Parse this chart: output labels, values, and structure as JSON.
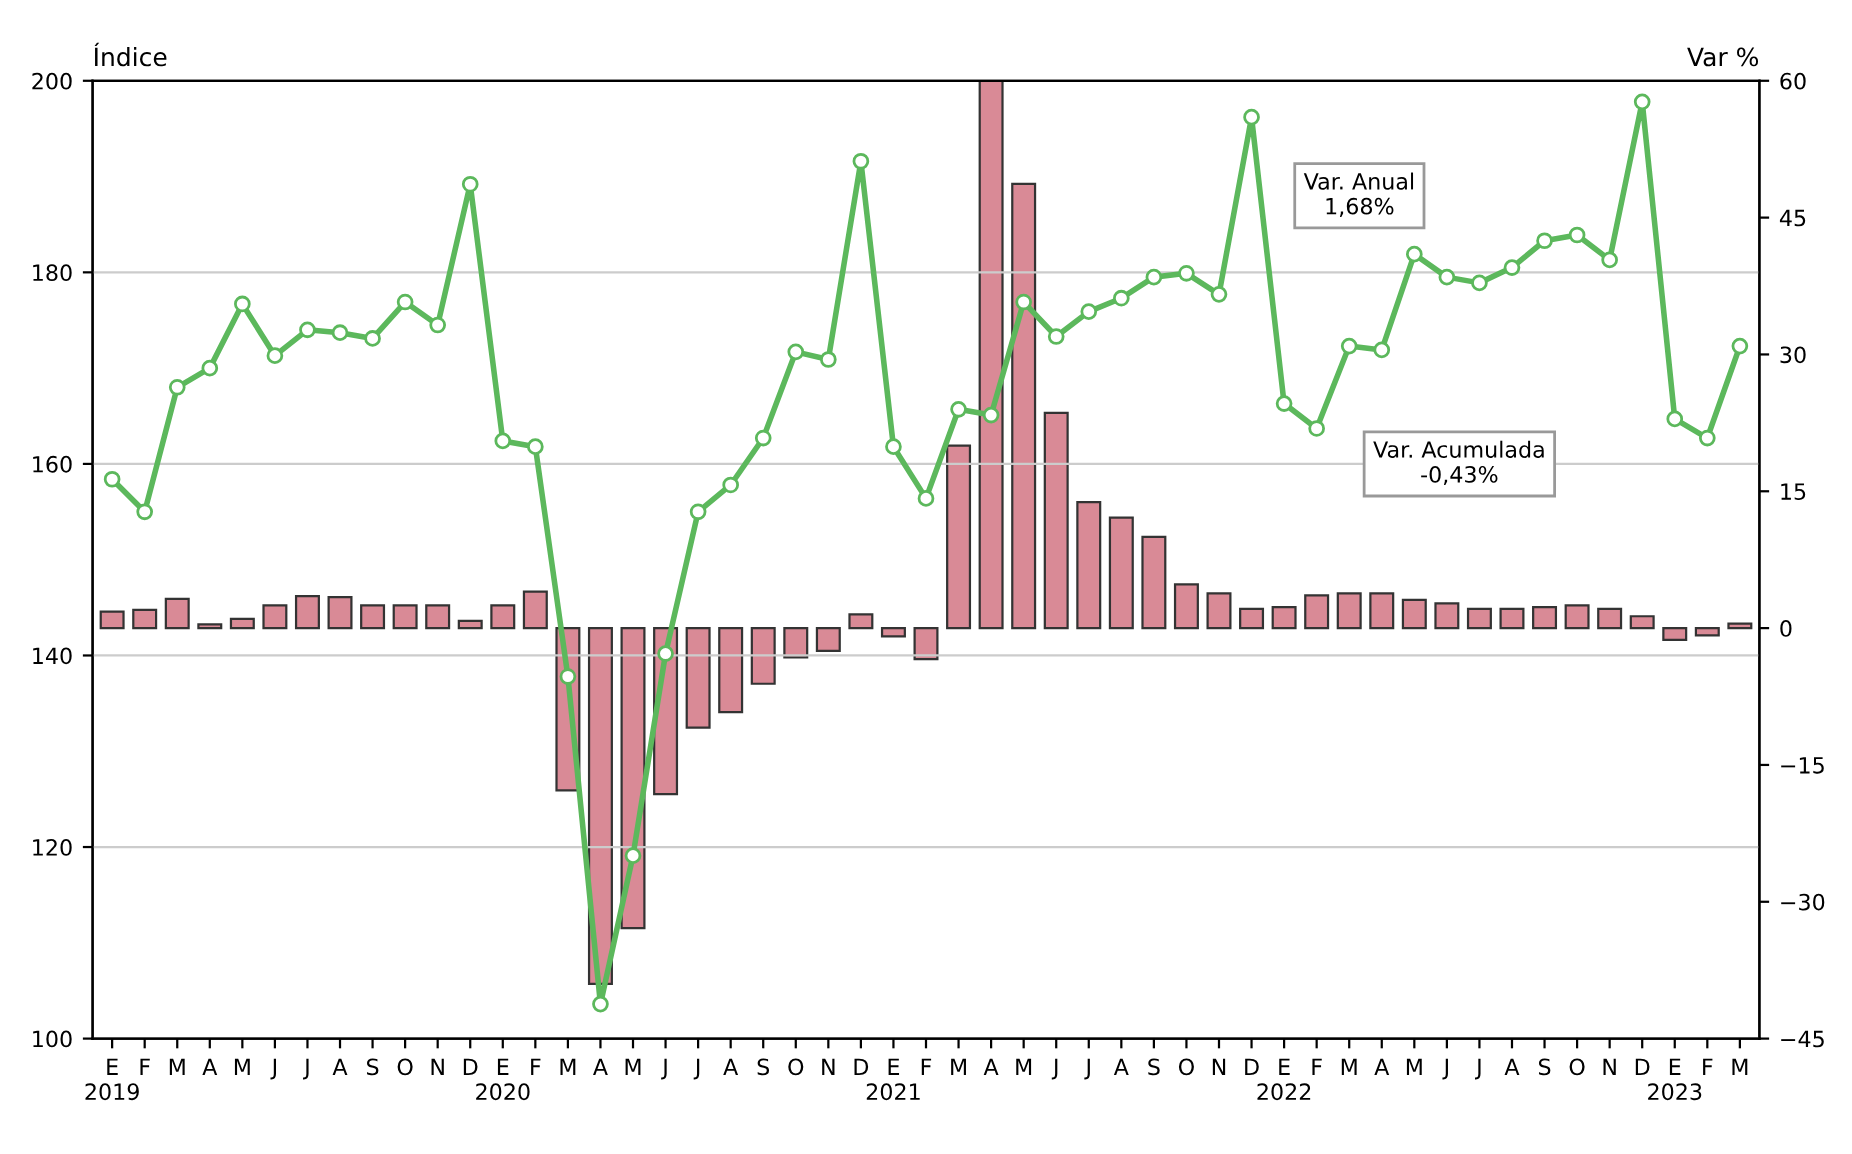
{
  "chart_data": {
    "type": "line",
    "ylabel": "Índice",
    "y2label": "Var %",
    "categories": [
      "E\n2019",
      "F",
      "M",
      "A",
      "M",
      "J",
      "J",
      "A",
      "S",
      "O",
      "N",
      "D",
      "E\n2020",
      "F",
      "M",
      "A",
      "M",
      "J",
      "J",
      "A",
      "S",
      "O",
      "N",
      "D",
      "E\n2021",
      "F",
      "M",
      "A",
      "M",
      "J",
      "J",
      "A",
      "S",
      "O",
      "N",
      "D",
      "E\n2022",
      "F",
      "M",
      "A",
      "M",
      "J",
      "J",
      "A",
      "S",
      "O",
      "N",
      "D",
      "E\n2023",
      "F",
      "M"
    ],
    "series": [
      {
        "type": "bar",
        "axis": "y2",
        "color": "#d98a96",
        "values": [
          1.8,
          2.0,
          3.2,
          0.4,
          1.0,
          2.5,
          3.5,
          3.4,
          2.5,
          2.5,
          2.5,
          0.8,
          2.5,
          4.0,
          -17.8,
          -39.0,
          -32.9,
          -18.2,
          -10.9,
          -9.2,
          -6.1,
          -3.2,
          -2.5,
          1.5,
          -0.9,
          -3.4,
          20.0,
          60.0,
          48.7,
          23.6,
          13.8,
          12.1,
          10.0,
          4.8,
          3.8,
          2.1,
          2.3,
          3.6,
          3.8,
          3.8,
          3.1,
          2.7,
          2.1,
          2.1,
          2.3,
          2.5,
          2.1,
          1.3,
          -1.3,
          -0.8,
          0.5
        ]
      },
      {
        "color": "#5cb85c",
        "values": [
          158.4,
          155.0,
          168.0,
          170.0,
          176.7,
          171.3,
          174.0,
          173.7,
          173.1,
          176.9,
          174.5,
          189.2,
          162.4,
          161.8,
          137.8,
          103.6,
          119.1,
          140.2,
          155.0,
          157.8,
          162.7,
          171.7,
          170.9,
          191.6,
          161.8,
          156.4,
          165.7,
          165.1,
          176.9,
          173.3,
          175.9,
          177.3,
          179.5,
          179.9,
          177.7,
          196.2,
          166.3,
          163.7,
          172.3,
          171.9,
          181.9,
          179.5,
          178.9,
          180.5,
          183.3,
          183.9,
          181.3,
          197.8,
          164.7,
          162.7,
          172.3
        ]
      }
    ],
    "ylim": [
      100,
      200
    ],
    "yticks": [
      100,
      120,
      140,
      160,
      180,
      200
    ],
    "y2lim": [
      -45,
      60
    ],
    "y2ticks": [
      -45,
      -30,
      -15,
      0,
      15,
      30,
      45,
      60
    ],
    "marker": "circle",
    "grid": "y",
    "annotations": [
      "Var. Anual\n1,68%",
      "Var. Acumulada\n-0,43%"
    ]
  }
}
